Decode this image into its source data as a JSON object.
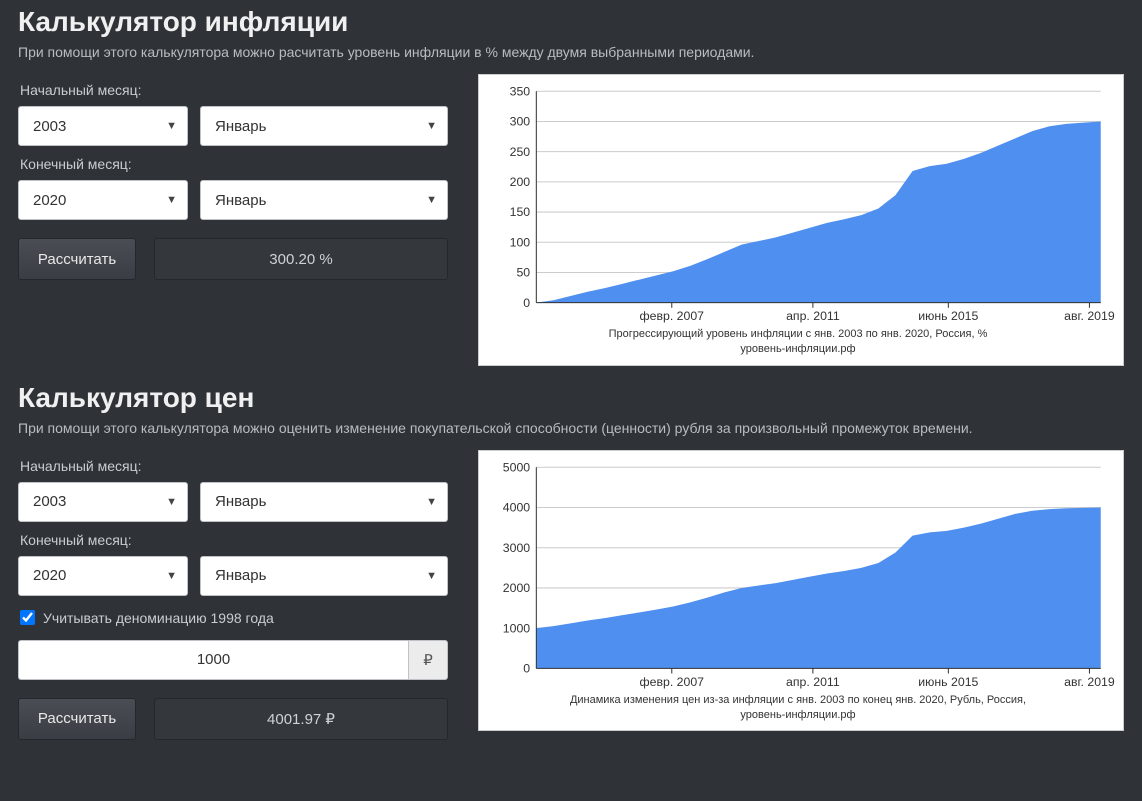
{
  "section1": {
    "title": "Калькулятор инфляции",
    "desc": "При помощи этого калькулятора можно расчитать уровень инфляции в % между двумя выбранными периодами.",
    "start_label": "Начальный месяц:",
    "end_label": "Конечный месяц:",
    "start_year": "2003",
    "start_month": "Январь",
    "end_year": "2020",
    "end_month": "Январь",
    "calc_label": "Рассчитать",
    "result": "300.20 %",
    "chart": {
      "type": "area",
      "caption_line1": "Прогрессирующий уровень инфляции с янв. 2003 по янв. 2020, Россия, %",
      "caption_line2": "уровень-инфляции.рф",
      "ylim": [
        0,
        350
      ],
      "ytick_step": 50,
      "yticks": [
        0,
        50,
        100,
        150,
        200,
        250,
        300,
        350
      ],
      "xticks": [
        "февр. 2007",
        "апр. 2011",
        "июнь 2015",
        "авг. 2019"
      ],
      "xtick_pos": [
        0.24,
        0.49,
        0.73,
        0.98
      ],
      "fill_color": "#4f8ff0",
      "grid_color": "#cccccc",
      "axis_color": "#333333",
      "background_color": "#ffffff",
      "label_fontsize": 12,
      "caption_fontsize": 11,
      "series": [
        0,
        4,
        11,
        18,
        24,
        31,
        38,
        45,
        52,
        61,
        72,
        84,
        96,
        102,
        108,
        116,
        124,
        132,
        138,
        145,
        156,
        178,
        218,
        226,
        230,
        238,
        248,
        260,
        272,
        284,
        292,
        296,
        298,
        300
      ]
    }
  },
  "section2": {
    "title": "Калькулятор цен",
    "desc": "При помощи этого калькулятора можно оценить изменение покупательской способности (ценности) рубля за произвольный промежуток времени.",
    "start_label": "Начальный месяц:",
    "end_label": "Конечный месяц:",
    "start_year": "2003",
    "start_month": "Январь",
    "end_year": "2020",
    "end_month": "Январь",
    "denom_label": "Учитывать деноминацию 1998 года",
    "denom_checked": true,
    "amount_value": "1000",
    "amount_suffix": "₽",
    "calc_label": "Рассчитать",
    "result": "4001.97 ₽",
    "chart": {
      "type": "area",
      "caption_line1": "Динамика изменения цен из-за инфляции с янв. 2003 по конец янв. 2020, Рубль, Россия,",
      "caption_line2": "уровень-инфляции.рф",
      "ylim": [
        0,
        5000
      ],
      "ytick_step": 1000,
      "yticks": [
        0,
        1000,
        2000,
        3000,
        4000,
        5000
      ],
      "xticks": [
        "февр. 2007",
        "апр. 2011",
        "июнь 2015",
        "авг. 2019"
      ],
      "xtick_pos": [
        0.24,
        0.49,
        0.73,
        0.98
      ],
      "fill_color": "#4f8ff0",
      "grid_color": "#cccccc",
      "axis_color": "#333333",
      "background_color": "#ffffff",
      "label_fontsize": 12,
      "caption_fontsize": 11,
      "series": [
        1000,
        1050,
        1120,
        1190,
        1250,
        1320,
        1390,
        1460,
        1540,
        1640,
        1760,
        1890,
        2000,
        2060,
        2120,
        2200,
        2280,
        2360,
        2420,
        2500,
        2620,
        2880,
        3300,
        3380,
        3420,
        3500,
        3600,
        3720,
        3840,
        3920,
        3960,
        3980,
        3990,
        4000
      ]
    }
  }
}
